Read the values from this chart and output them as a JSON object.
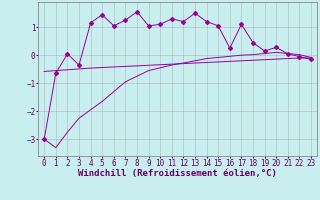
{
  "background_color": "#c8eef0",
  "line_color": "#990099",
  "grid_color": "#aaaaaa",
  "xlabel": "Windchill (Refroidissement éolien,°C)",
  "xlabel_fontsize": 6.5,
  "tick_fontsize": 5.5,
  "xlim": [
    -0.5,
    23.5
  ],
  "ylim": [
    -3.6,
    1.9
  ],
  "yticks": [
    -3,
    -2,
    -1,
    0,
    1
  ],
  "xticks": [
    0,
    1,
    2,
    3,
    4,
    5,
    6,
    7,
    8,
    9,
    10,
    11,
    12,
    13,
    14,
    15,
    16,
    17,
    18,
    19,
    20,
    21,
    22,
    23
  ],
  "series1_x": [
    0,
    1,
    2,
    3,
    4,
    5,
    6,
    7,
    8,
    9,
    10,
    11,
    12,
    13,
    14,
    15,
    16,
    17,
    18,
    19,
    20,
    21,
    22,
    23
  ],
  "series1_y": [
    -3.0,
    -0.65,
    0.05,
    -0.35,
    1.15,
    1.45,
    1.05,
    1.25,
    1.55,
    1.05,
    1.1,
    1.3,
    1.2,
    1.5,
    1.2,
    1.05,
    0.25,
    1.1,
    0.45,
    0.15,
    0.28,
    0.05,
    -0.05,
    -0.15
  ],
  "series2_x": [
    0,
    1,
    2,
    3,
    4,
    5,
    6,
    7,
    8,
    9,
    10,
    11,
    12,
    13,
    14,
    15,
    16,
    17,
    18,
    19,
    20,
    21,
    22,
    23
  ],
  "series2_y": [
    -3.0,
    -3.3,
    -2.75,
    -2.25,
    -1.95,
    -1.65,
    -1.3,
    -0.95,
    -0.75,
    -0.55,
    -0.45,
    -0.35,
    -0.28,
    -0.2,
    -0.12,
    -0.08,
    -0.04,
    0.0,
    0.02,
    0.06,
    0.1,
    0.06,
    0.02,
    -0.08
  ],
  "series3_x": [
    0,
    1,
    2,
    3,
    4,
    5,
    6,
    7,
    8,
    9,
    10,
    11,
    12,
    13,
    14,
    15,
    16,
    17,
    18,
    19,
    20,
    21,
    22,
    23
  ],
  "series3_y": [
    -0.58,
    -0.55,
    -0.52,
    -0.49,
    -0.46,
    -0.44,
    -0.42,
    -0.4,
    -0.38,
    -0.36,
    -0.34,
    -0.32,
    -0.3,
    -0.28,
    -0.26,
    -0.24,
    -0.22,
    -0.2,
    -0.18,
    -0.16,
    -0.14,
    -0.12,
    -0.1,
    -0.1
  ]
}
